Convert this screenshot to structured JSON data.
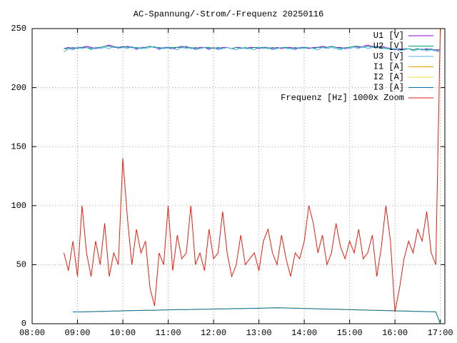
{
  "chart_data": {
    "type": "line",
    "title": "AC-Spannung/-Strom/-Frequenz 20250116",
    "x": [
      8.7,
      8.8,
      8.9,
      9,
      9.1,
      9.2,
      9.3,
      9.4,
      9.5,
      9.6,
      9.7,
      9.8,
      9.9,
      10,
      10.1,
      10.2,
      10.3,
      10.4,
      10.5,
      10.6,
      10.7,
      10.8,
      10.9,
      11,
      11.1,
      11.2,
      11.3,
      11.4,
      11.5,
      11.6,
      11.7,
      11.8,
      11.9,
      12,
      12.1,
      12.2,
      12.3,
      12.4,
      12.5,
      12.6,
      12.7,
      12.8,
      12.9,
      13,
      13.1,
      13.2,
      13.3,
      13.4,
      13.5,
      13.6,
      13.7,
      13.8,
      13.9,
      14,
      14.1,
      14.2,
      14.3,
      14.4,
      14.5,
      14.6,
      14.7,
      14.8,
      14.9,
      15,
      15.1,
      15.2,
      15.3,
      15.4,
      15.5,
      15.6,
      15.7,
      15.8,
      15.9,
      16,
      16.1,
      16.2,
      16.3,
      16.4,
      16.5,
      16.6,
      16.7,
      16.8,
      16.9,
      17
    ],
    "xlim": [
      8,
      17.1
    ],
    "xticks": [
      {
        "value": 8,
        "label": "08:00"
      },
      {
        "value": 9,
        "label": "09:00"
      },
      {
        "value": 10,
        "label": "10:00"
      },
      {
        "value": 11,
        "label": "11:00"
      },
      {
        "value": 12,
        "label": "12:00"
      },
      {
        "value": 13,
        "label": "13:00"
      },
      {
        "value": 14,
        "label": "14:00"
      },
      {
        "value": 15,
        "label": "15:00"
      },
      {
        "value": 16,
        "label": "16:00"
      },
      {
        "value": 17,
        "label": "17:00"
      }
    ],
    "ylim": [
      0,
      250
    ],
    "yticks": [
      0,
      50,
      100,
      150,
      200,
      250
    ],
    "grid": true,
    "legend": "top-right",
    "series": [
      {
        "name": "U1 [V]",
        "color": "#9400d3",
        "values": [
          233,
          234,
          233,
          234,
          234,
          235,
          234,
          233,
          234,
          235,
          236,
          235,
          234,
          234,
          235,
          234,
          233,
          234,
          234,
          235,
          234,
          233,
          234,
          234,
          233,
          234,
          235,
          234,
          234,
          233,
          234,
          234,
          233,
          234,
          233,
          234,
          234,
          233,
          234,
          234,
          233,
          234,
          234,
          233,
          234,
          234,
          233,
          234,
          233,
          234,
          234,
          233,
          234,
          234,
          233,
          234,
          234,
          235,
          234,
          235,
          234,
          234,
          233,
          234,
          235,
          234,
          235,
          236,
          235,
          234,
          235,
          234,
          233,
          232,
          233,
          232,
          233,
          232,
          233,
          232,
          233,
          232,
          232,
          232
        ]
      },
      {
        "name": "U2 [V]",
        "color": "#009e73",
        "values": [
          233,
          233,
          234,
          233,
          234,
          234,
          233,
          234,
          234,
          235,
          235,
          234,
          234,
          235,
          234,
          234,
          234,
          233,
          234,
          235,
          234,
          234,
          233,
          234,
          234,
          234,
          234,
          235,
          233,
          234,
          233,
          234,
          234,
          233,
          234,
          233,
          234,
          233,
          234,
          233,
          234,
          233,
          234,
          234,
          234,
          233,
          234,
          233,
          234,
          234,
          233,
          234,
          233,
          234,
          234,
          233,
          234,
          234,
          234,
          235,
          234,
          233,
          234,
          234,
          235,
          235,
          234,
          235,
          234,
          235,
          234,
          233,
          233,
          233,
          232,
          233,
          233,
          232,
          233,
          232,
          232,
          233,
          231,
          232
        ]
      },
      {
        "name": "U3 [V]",
        "color": "#56b4e9",
        "values": [
          230,
          233,
          232,
          234,
          233,
          234,
          232,
          234,
          233,
          234,
          233,
          235,
          233,
          234,
          233,
          235,
          232,
          234,
          233,
          234,
          235,
          232,
          234,
          233,
          233,
          232,
          234,
          233,
          234,
          232,
          233,
          234,
          232,
          234,
          232,
          233,
          234,
          233,
          232,
          234,
          233,
          233,
          232,
          234,
          233,
          234,
          232,
          233,
          234,
          233,
          233,
          232,
          234,
          233,
          234,
          233,
          232,
          234,
          233,
          234,
          233,
          232,
          234,
          233,
          234,
          233,
          235,
          233,
          234,
          234,
          233,
          234,
          232,
          233,
          231,
          232,
          233,
          231,
          232,
          233,
          231,
          232,
          231,
          230
        ]
      },
      {
        "name": "I1 [A]",
        "color": "#e69f00",
        "values": [
          null,
          null,
          10,
          10,
          10,
          10,
          10.2,
          10.3,
          10.5,
          10.5,
          10.6,
          10.7,
          10.8,
          11,
          11,
          11.1,
          11.2,
          11.3,
          11.3,
          11.4,
          11.5,
          11.5,
          11.6,
          11.8,
          11.8,
          11.9,
          12,
          12,
          12.1,
          12.2,
          12.2,
          12.3,
          12.4,
          12.5,
          12.6,
          12.6,
          12.7,
          12.8,
          12.8,
          12.9,
          13,
          13,
          13.1,
          13.2,
          13.3,
          13.4,
          13.5,
          13.6,
          13.5,
          13.4,
          13.3,
          13.2,
          13.1,
          13,
          12.9,
          12.8,
          12.7,
          12.6,
          12.5,
          12.4,
          12.3,
          12.2,
          12.1,
          12,
          11.9,
          11.8,
          11.7,
          11.6,
          11.5,
          11.4,
          11.3,
          11.2,
          11.1,
          11,
          10.9,
          10.8,
          10.7,
          10.6,
          10.5,
          10.4,
          10.3,
          10.2,
          10.1,
          0
        ]
      },
      {
        "name": "I2 [A]",
        "color": "#f0e442",
        "values": [
          null,
          null,
          10,
          10,
          10.1,
          10.1,
          10.2,
          10.4,
          10.5,
          10.6,
          10.6,
          10.8,
          10.9,
          11,
          11.1,
          11.1,
          11.2,
          11.3,
          11.4,
          11.4,
          11.5,
          11.6,
          11.6,
          11.8,
          11.9,
          11.9,
          12,
          12.1,
          12.1,
          12.2,
          12.3,
          12.3,
          12.4,
          12.5,
          12.6,
          12.7,
          12.7,
          12.8,
          12.9,
          12.9,
          13,
          13.1,
          13.1,
          13.2,
          13.3,
          13.4,
          13.5,
          13.5,
          13.5,
          13.4,
          13.3,
          13.2,
          13.1,
          13,
          12.9,
          12.8,
          12.7,
          12.6,
          12.5,
          12.4,
          12.3,
          12.2,
          12.1,
          12,
          11.9,
          11.8,
          11.7,
          11.6,
          11.5,
          11.4,
          11.3,
          11.2,
          11.1,
          11,
          10.9,
          10.8,
          10.7,
          10.6,
          10.5,
          10.4,
          10.3,
          10.2,
          10.1,
          0
        ]
      },
      {
        "name": "I3 [A]",
        "color": "#0072b2",
        "values": [
          null,
          null,
          10,
          10,
          10,
          10.1,
          10.2,
          10.3,
          10.4,
          10.5,
          10.6,
          10.7,
          10.8,
          10.9,
          11,
          11.1,
          11.2,
          11.2,
          11.3,
          11.4,
          11.4,
          11.5,
          11.6,
          11.7,
          11.8,
          11.9,
          11.9,
          12,
          12.1,
          12.1,
          12.2,
          12.3,
          12.3,
          12.4,
          12.5,
          12.6,
          12.6,
          12.7,
          12.8,
          12.8,
          12.9,
          13,
          13,
          13.1,
          13.2,
          13.3,
          13.4,
          13.5,
          13.4,
          13.3,
          13.2,
          13.1,
          13,
          12.9,
          12.8,
          12.7,
          12.6,
          12.5,
          12.4,
          12.3,
          12.2,
          12.1,
          12,
          11.9,
          11.8,
          11.7,
          11.6,
          11.5,
          11.4,
          11.3,
          11.2,
          11.1,
          11,
          10.9,
          10.8,
          10.7,
          10.6,
          10.5,
          10.4,
          10.3,
          10.2,
          10.1,
          10,
          0
        ]
      },
      {
        "name": "Frequenz [Hz] 1000x Zoom",
        "color": "#e51e10",
        "values": [
          60,
          45,
          70,
          40,
          100,
          60,
          40,
          70,
          50,
          85,
          40,
          60,
          50,
          140,
          90,
          50,
          80,
          60,
          70,
          30,
          15,
          60,
          50,
          100,
          45,
          75,
          55,
          60,
          100,
          50,
          60,
          45,
          80,
          55,
          60,
          95,
          60,
          40,
          50,
          75,
          50,
          55,
          60,
          45,
          70,
          80,
          60,
          50,
          75,
          55,
          40,
          60,
          55,
          70,
          100,
          85,
          60,
          75,
          50,
          60,
          85,
          65,
          55,
          70,
          60,
          80,
          55,
          60,
          75,
          40,
          65,
          100,
          70,
          10,
          30,
          55,
          70,
          60,
          80,
          70,
          95,
          60,
          50,
          250
        ]
      }
    ]
  }
}
